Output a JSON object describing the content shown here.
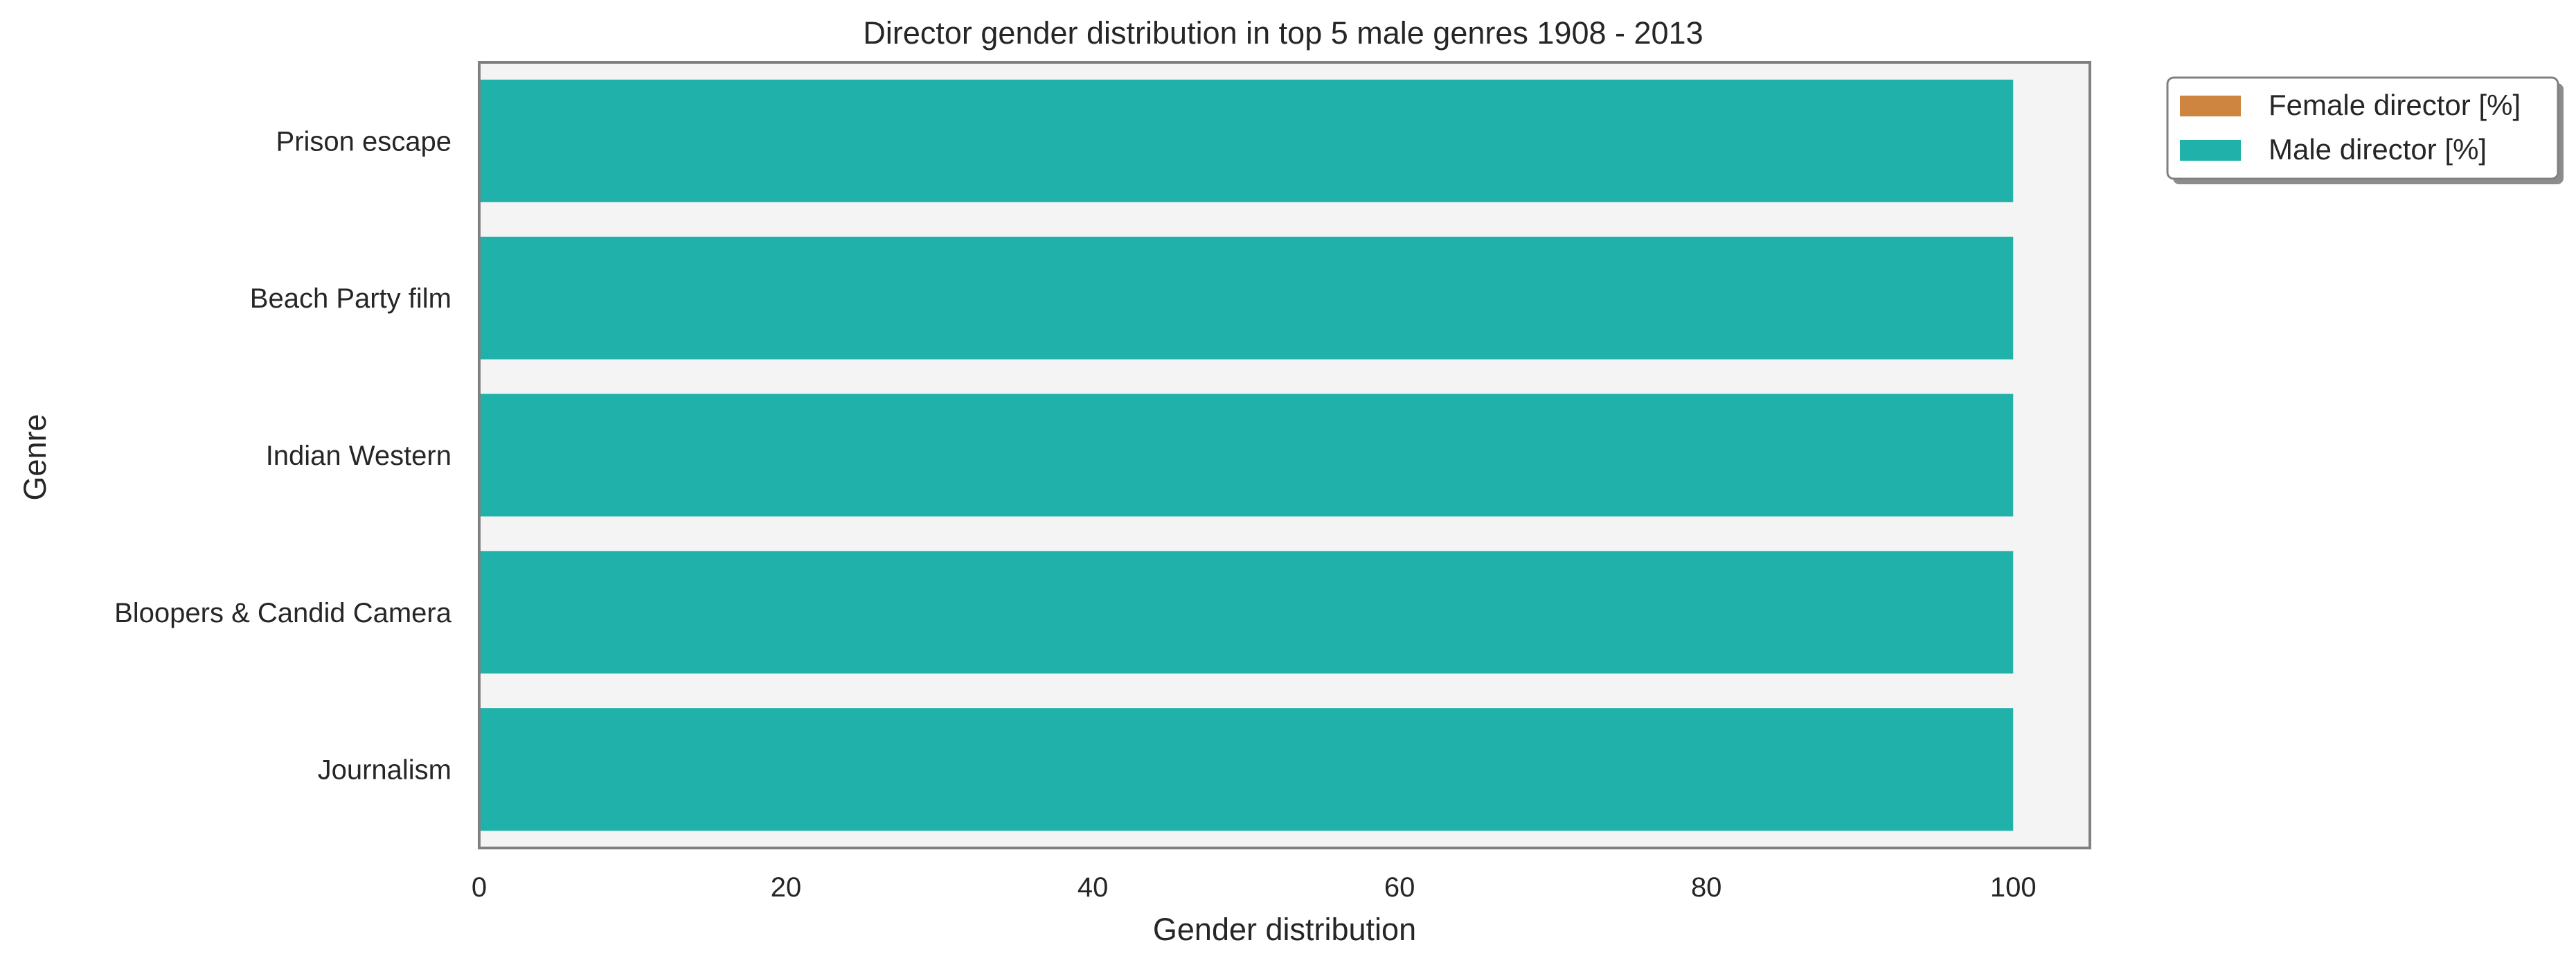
{
  "chart_data": {
    "type": "bar",
    "orientation": "horizontal",
    "stacked": true,
    "title": "Director gender distribution in top 5 male genres 1908 - 2013",
    "xlabel": "Gender distribution",
    "ylabel": "Genre",
    "xlim": [
      0,
      105
    ],
    "xticks": [
      "0",
      "20",
      "40",
      "60",
      "80",
      "100"
    ],
    "categories": [
      "Prison escape",
      "Beach Party film",
      "Indian Western",
      "Bloopers & Candid Camera",
      "Journalism"
    ],
    "series": [
      {
        "name": "Female director [%]",
        "values": [
          0,
          0,
          0,
          0,
          0
        ],
        "color": "#cd853f"
      },
      {
        "name": "Male director [%]",
        "values": [
          100,
          100,
          100,
          100,
          100
        ],
        "color": "#20b2aa"
      }
    ],
    "grid": false,
    "legend_position": "outside-top-right",
    "plot_background": "#f4f4f4",
    "frame_color": "#808080"
  }
}
